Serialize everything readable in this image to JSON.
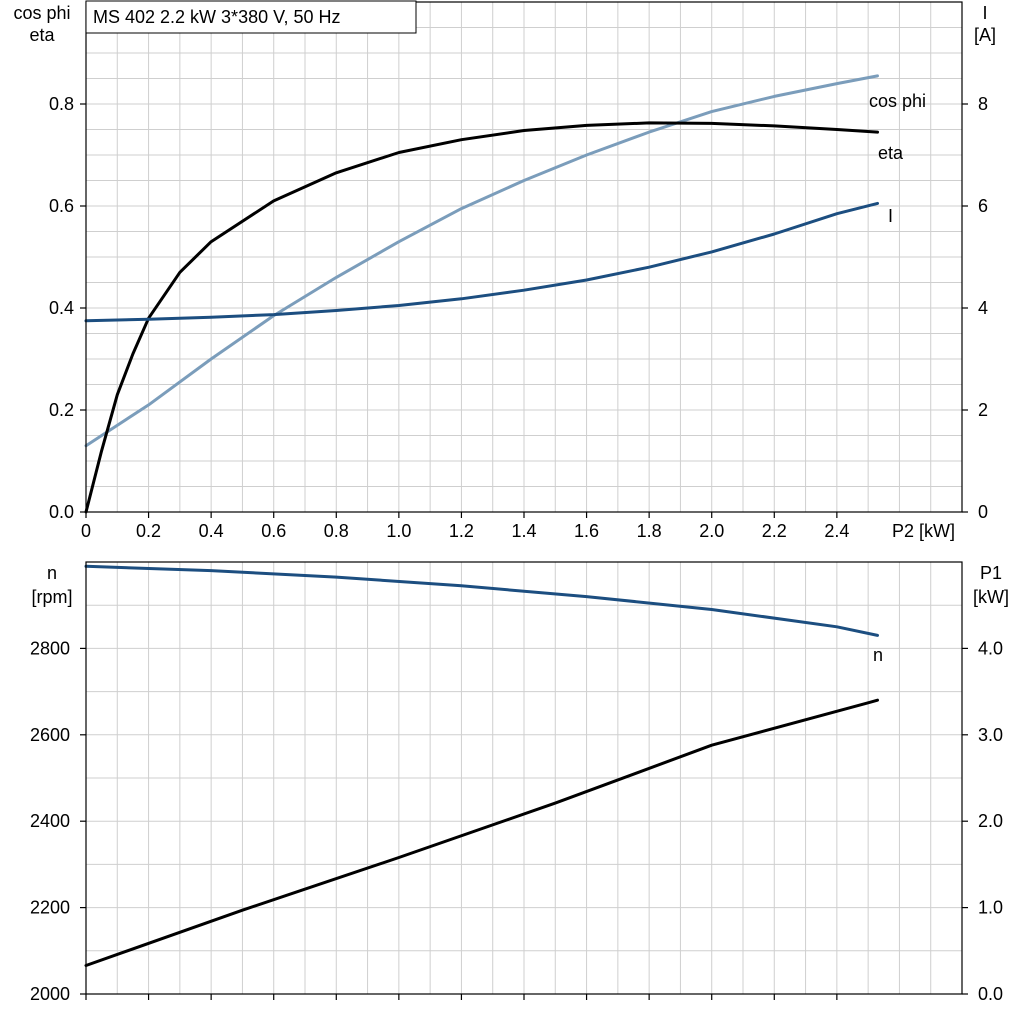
{
  "title": "MS 402   2.2 kW   3*380 V, 50 Hz",
  "colors": {
    "cos_phi": "#7b9dbb",
    "eta": "#000000",
    "I": "#1c4e80",
    "n": "#1c4e80",
    "P1": "#000000",
    "grid": "#cfcfcf"
  },
  "chart_data": [
    {
      "type": "line",
      "xlabel": "P2 [kW]",
      "x_ticks": [
        "0",
        "0.2",
        "0.4",
        "0.6",
        "0.8",
        "1.0",
        "1.2",
        "1.4",
        "1.6",
        "1.8",
        "2.0",
        "2.2",
        "2.4"
      ],
      "xlim": [
        0,
        2.8
      ],
      "ylabel_left": [
        "cos phi",
        "eta"
      ],
      "ylim_left": [
        0,
        1.0
      ],
      "y_ticks_left": [
        "0.0",
        "0.2",
        "0.4",
        "0.6",
        "0.8"
      ],
      "ylabel_right": [
        "I",
        "[A]"
      ],
      "ylim_right": [
        0,
        10
      ],
      "y_ticks_right": [
        "0",
        "2",
        "4",
        "6",
        "8"
      ],
      "grid": true,
      "series": [
        {
          "name": "cos phi",
          "axis": "left",
          "x": [
            0,
            0.2,
            0.4,
            0.6,
            0.8,
            1.0,
            1.2,
            1.4,
            1.6,
            1.8,
            2.0,
            2.2,
            2.4,
            2.53
          ],
          "y": [
            0.13,
            0.21,
            0.3,
            0.385,
            0.46,
            0.53,
            0.595,
            0.65,
            0.7,
            0.745,
            0.785,
            0.815,
            0.84,
            0.855
          ]
        },
        {
          "name": "eta",
          "axis": "left",
          "x": [
            0,
            0.05,
            0.1,
            0.15,
            0.2,
            0.3,
            0.4,
            0.6,
            0.8,
            1.0,
            1.2,
            1.4,
            1.6,
            1.8,
            2.0,
            2.2,
            2.4,
            2.53
          ],
          "y": [
            0.0,
            0.12,
            0.23,
            0.31,
            0.38,
            0.47,
            0.53,
            0.61,
            0.665,
            0.705,
            0.73,
            0.748,
            0.758,
            0.763,
            0.762,
            0.757,
            0.75,
            0.745
          ]
        },
        {
          "name": "I",
          "axis": "right",
          "x": [
            0,
            0.2,
            0.4,
            0.6,
            0.8,
            1.0,
            1.2,
            1.4,
            1.6,
            1.8,
            2.0,
            2.2,
            2.4,
            2.53
          ],
          "y": [
            3.75,
            3.78,
            3.82,
            3.87,
            3.95,
            4.05,
            4.18,
            4.35,
            4.55,
            4.8,
            5.1,
            5.45,
            5.85,
            6.05
          ]
        }
      ]
    },
    {
      "type": "line",
      "xlim": [
        0,
        2.8
      ],
      "ylabel_left": [
        "n",
        "[rpm]"
      ],
      "ylim_left": [
        2000,
        3000
      ],
      "y_ticks_left": [
        "2000",
        "2200",
        "2400",
        "2600",
        "2800"
      ],
      "ylabel_right": [
        "P1",
        "[kW]"
      ],
      "ylim_right": [
        0,
        5
      ],
      "y_ticks_right": [
        "0.0",
        "1.0",
        "2.0",
        "3.0",
        "4.0"
      ],
      "grid": true,
      "series": [
        {
          "name": "n",
          "axis": "left",
          "x": [
            0,
            0.4,
            0.8,
            1.2,
            1.6,
            2.0,
            2.4,
            2.53
          ],
          "y": [
            2990,
            2980,
            2965,
            2945,
            2920,
            2890,
            2850,
            2830
          ]
        },
        {
          "name": "",
          "axis": "right",
          "x": [
            0,
            0.5,
            1.0,
            1.5,
            2.0,
            2.5,
            2.53
          ],
          "y": [
            0.33,
            0.97,
            1.58,
            2.21,
            2.88,
            3.37,
            3.4
          ]
        }
      ]
    }
  ]
}
